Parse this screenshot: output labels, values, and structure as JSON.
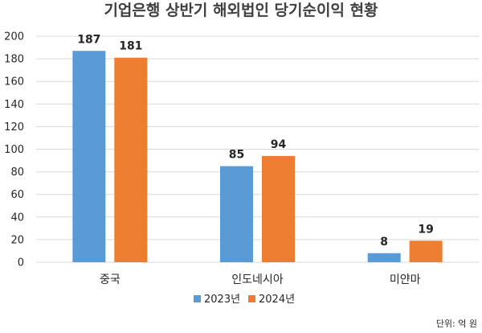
{
  "chart_data": {
    "type": "bar",
    "title": "기업은행 상반기 해외법인 당기순이익 현황",
    "categories": [
      "중국",
      "인도네시아",
      "미얀마"
    ],
    "series": [
      {
        "name": "2023년",
        "values": [
          187,
          85,
          8
        ],
        "color": "#5b9bd5"
      },
      {
        "name": "2024년",
        "values": [
          181,
          94,
          19
        ],
        "color": "#ed7d31"
      }
    ],
    "ylim": [
      0,
      200
    ],
    "yticks": [
      0,
      20,
      40,
      60,
      80,
      100,
      120,
      140,
      160,
      180,
      200
    ],
    "grid": true,
    "legend_position": "bottom",
    "data_labels": true,
    "xlabel": "",
    "ylabel": ""
  },
  "unit_note": "단위: 억 원"
}
